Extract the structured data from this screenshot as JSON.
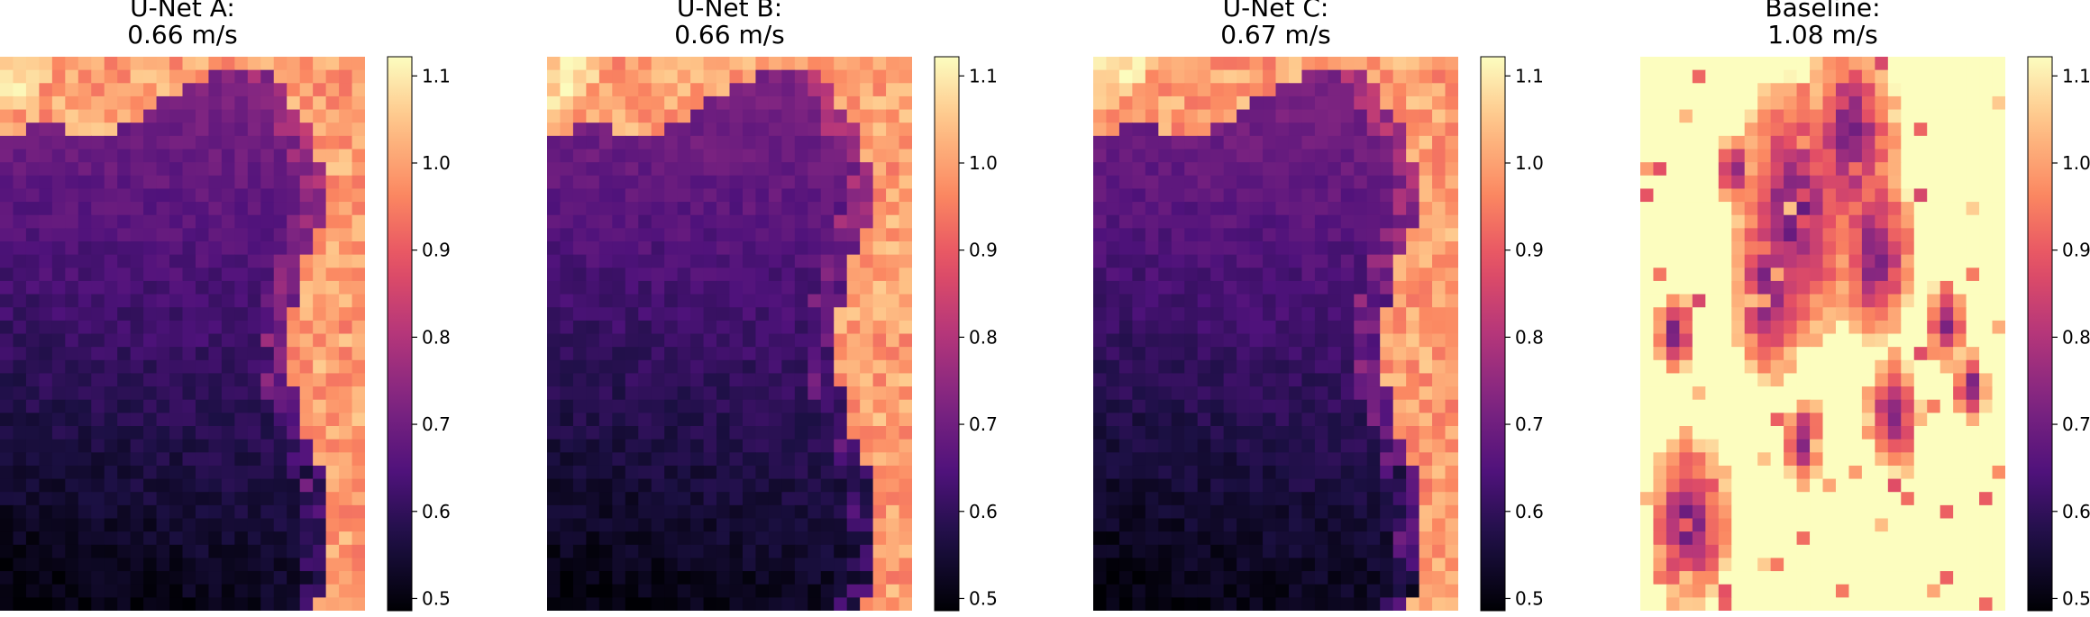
{
  "chart_data": [
    {
      "type": "heatmap",
      "title_line1": "U-Net A:",
      "title_line2": "0.66 m/s",
      "colormap": "magma",
      "vmin": 0.5,
      "vmax": 1.1,
      "colorbar_ticks": [
        "0.5",
        "0.6",
        "0.7",
        "0.8",
        "0.9",
        "1.0",
        "1.1"
      ],
      "grid": false,
      "pattern": "unet",
      "variant": 0
    },
    {
      "type": "heatmap",
      "title_line1": "U-Net B:",
      "title_line2": "0.66 m/s",
      "colormap": "magma",
      "vmin": 0.5,
      "vmax": 1.1,
      "colorbar_ticks": [
        "0.5",
        "0.6",
        "0.7",
        "0.8",
        "0.9",
        "1.0",
        "1.1"
      ],
      "grid": false,
      "pattern": "unet",
      "variant": 1
    },
    {
      "type": "heatmap",
      "title_line1": "U-Net C:",
      "title_line2": "0.67 m/s",
      "colormap": "magma",
      "vmin": 0.5,
      "vmax": 1.1,
      "colorbar_ticks": [
        "0.5",
        "0.6",
        "0.7",
        "0.8",
        "0.9",
        "1.0",
        "1.1"
      ],
      "grid": false,
      "pattern": "unet",
      "variant": 2
    },
    {
      "type": "heatmap",
      "title_line1": "Baseline:",
      "title_line2": "1.08 m/s",
      "colormap": "magma",
      "vmin": 0.5,
      "vmax": 1.1,
      "colorbar_ticks": [
        "0.5",
        "0.6",
        "0.7",
        "0.8",
        "0.9",
        "1.0",
        "1.1"
      ],
      "grid": false,
      "pattern": "baseline",
      "variant": 3
    }
  ]
}
